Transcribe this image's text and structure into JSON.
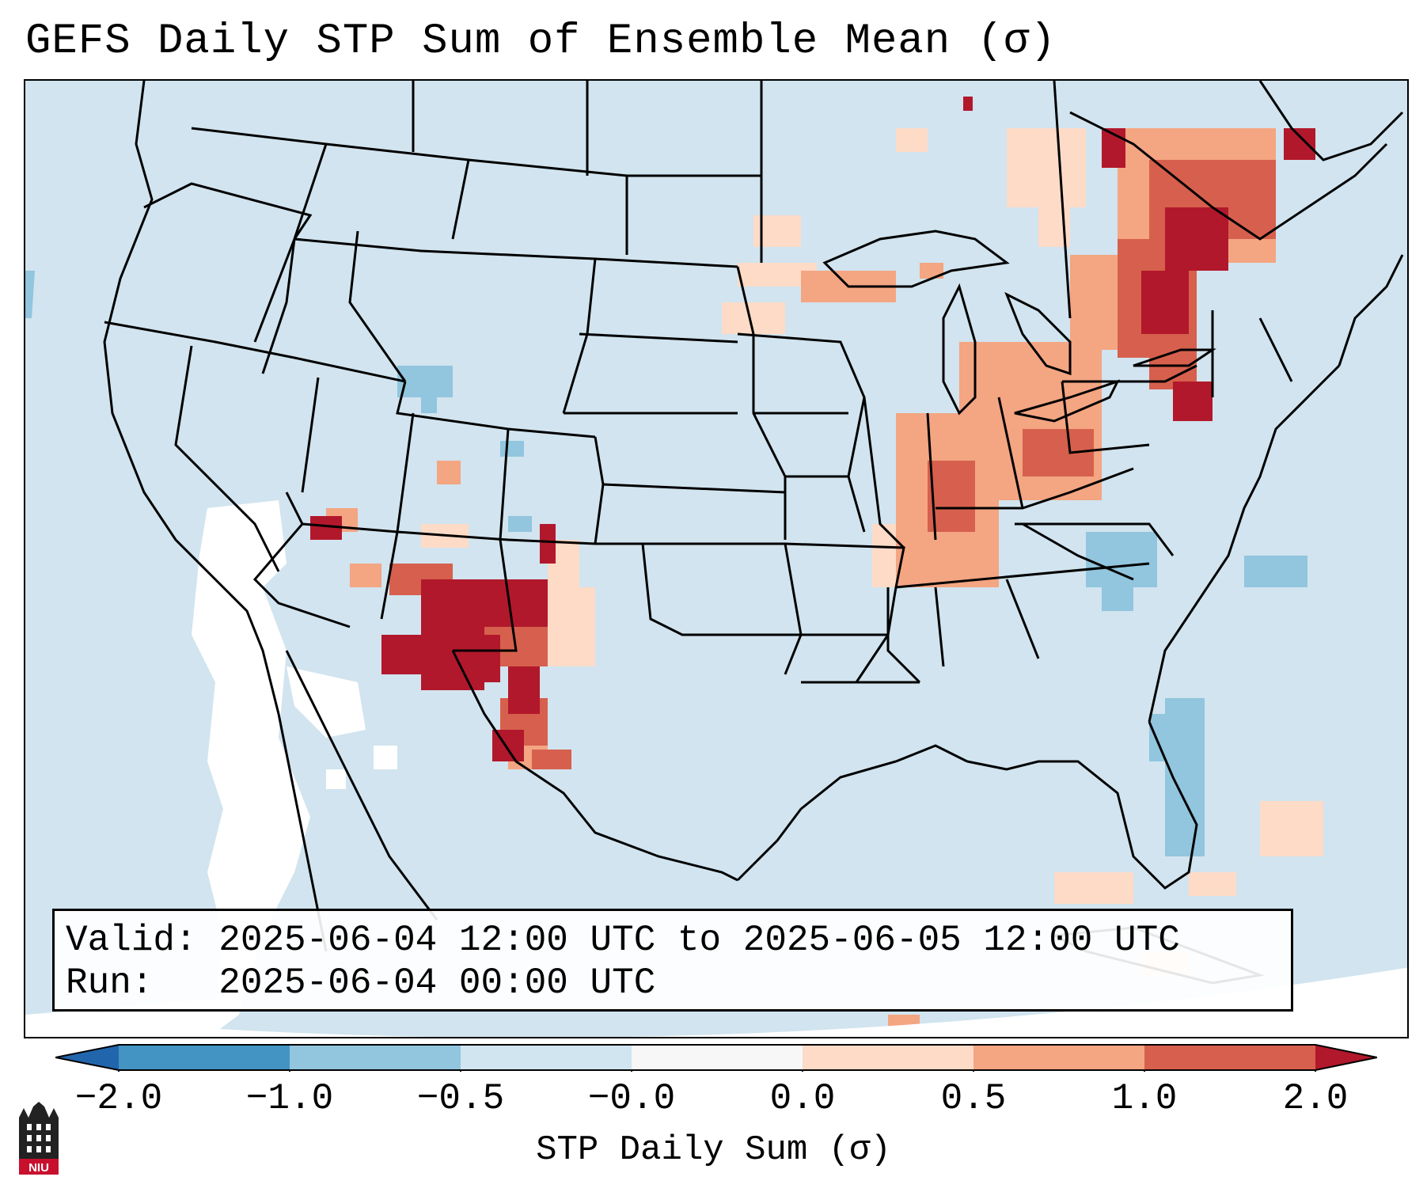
{
  "title": "GEFS Daily STP Sum of Ensemble Mean (σ)",
  "info": {
    "valid_line": "Valid: 2025-06-04 12:00 UTC to 2025-06-05 12:00 UTC",
    "run_line": "Run:   2025-06-04 00:00 UTC"
  },
  "colorbar": {
    "label": "STP Daily Sum (σ)",
    "ticks": [
      "−2.0",
      "−1.0",
      "−0.5",
      "−0.0",
      "0.0",
      "0.5",
      "1.0",
      "2.0"
    ],
    "bins": [
      {
        "range": "-2.0 to -1.0",
        "color": "#4393c3"
      },
      {
        "range": "-1.0 to -0.5",
        "color": "#92c5de"
      },
      {
        "range": "-0.5 to -0.0",
        "color": "#d1e5f0"
      },
      {
        "range": "-0.0 to 0.0",
        "color": "#f7f7f7"
      },
      {
        "range": "0.0 to 0.5",
        "color": "#fddbc7"
      },
      {
        "range": "0.5 to 1.0",
        "color": "#f4a582"
      },
      {
        "range": "1.0 to 2.0",
        "color": "#d6604d"
      }
    ],
    "under_color": "#2166ac",
    "over_color": "#b2182b"
  },
  "colors": {
    "background": "#d1e4ef",
    "neutral": "#ffffff",
    "light_blue": "#92c5de",
    "light_red": "#fddbc7",
    "mid_red": "#f4a582",
    "red": "#d6604d",
    "dark_red": "#b2182b"
  },
  "logo": {
    "label": "NIU"
  }
}
